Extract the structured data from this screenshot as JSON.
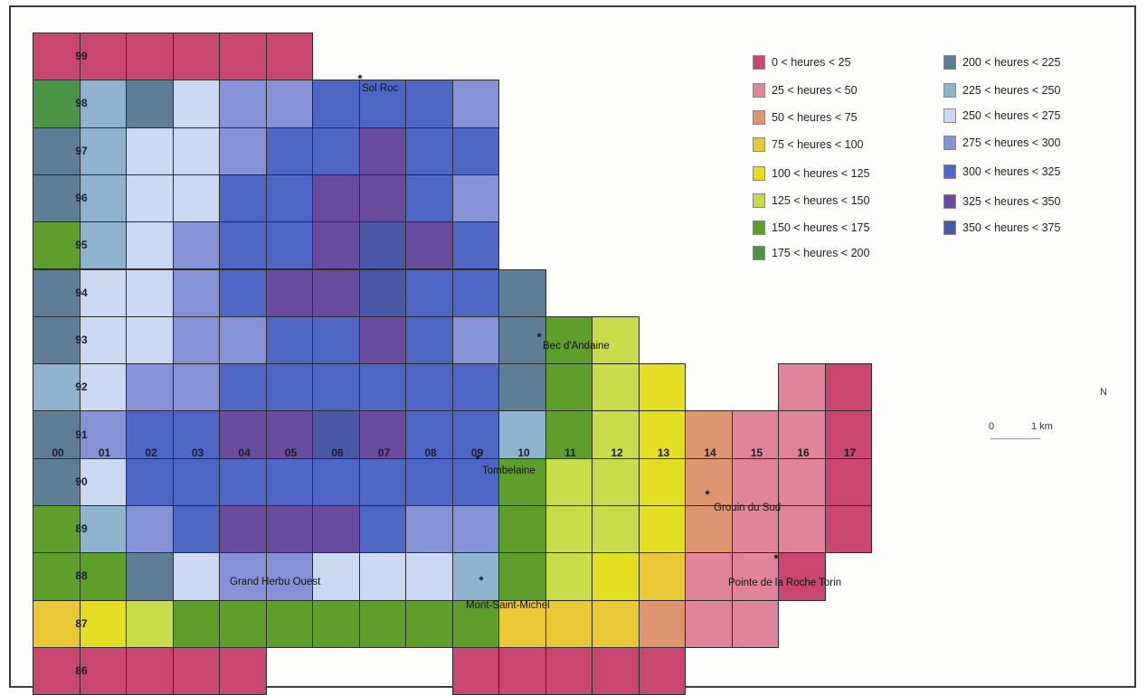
{
  "legend": [
    {
      "label": "0 < heures < 25",
      "color": "#c8466f"
    },
    {
      "label": "25 < heures < 50",
      "color": "#e0849a"
    },
    {
      "label": "50 < heures < 75",
      "color": "#de9670"
    },
    {
      "label": "75 < heures < 100",
      "color": "#e9c838"
    },
    {
      "label": "100 < heures < 125",
      "color": "#e3de22"
    },
    {
      "label": "125 < heures < 150",
      "color": "#c9dc4c"
    },
    {
      "label": "150 < heures < 175",
      "color": "#5e9f2c"
    },
    {
      "label": "175 < heures < 200",
      "color": "#4a9445"
    },
    {
      "label": "200 < heures < 225",
      "color": "#5f7e96"
    },
    {
      "label": "225 < heures < 250",
      "color": "#8fb3cf"
    },
    {
      "label": "250 < heures < 275",
      "color": "#cbdaf2"
    },
    {
      "label": "275 < heures < 300",
      "color": "#8593d6"
    },
    {
      "label": "300 < heures < 325",
      "color": "#4f66c4"
    },
    {
      "label": "325 < heures < 350",
      "color": "#6a4c9e"
    },
    {
      "label": "350 < heures < 375",
      "color": "#4a58a8"
    }
  ],
  "columns": [
    "00",
    "01",
    "02",
    "03",
    "04",
    "05",
    "06",
    "07",
    "08",
    "09",
    "10",
    "11",
    "12",
    "13",
    "14",
    "15",
    "16",
    "17"
  ],
  "rows": [
    {
      "label": "99",
      "start": 0,
      "classes": [
        0,
        0,
        0,
        0,
        0,
        0
      ]
    },
    {
      "label": "98",
      "start": 0,
      "classes": [
        7,
        9,
        8,
        10,
        11,
        11,
        12,
        12,
        12,
        11
      ]
    },
    {
      "label": "97",
      "start": 0,
      "classes": [
        8,
        9,
        10,
        10,
        11,
        12,
        12,
        13,
        12,
        12
      ]
    },
    {
      "label": "96",
      "start": 0,
      "classes": [
        8,
        9,
        10,
        10,
        12,
        12,
        13,
        13,
        12,
        11
      ]
    },
    {
      "label": "95",
      "start": 0,
      "classes": [
        6,
        9,
        10,
        11,
        12,
        12,
        13,
        14,
        13,
        12
      ]
    },
    {
      "label": "94",
      "start": 0,
      "classes": [
        8,
        10,
        10,
        11,
        12,
        13,
        13,
        14,
        12,
        12,
        8
      ]
    },
    {
      "label": "93",
      "start": 0,
      "classes": [
        8,
        10,
        10,
        11,
        11,
        12,
        12,
        13,
        12,
        11,
        8,
        6,
        5
      ]
    },
    {
      "label": "92",
      "start": 0,
      "classes": [
        9,
        10,
        11,
        11,
        12,
        12,
        12,
        12,
        12,
        12,
        8,
        6,
        5,
        4,
        null,
        null,
        1,
        0
      ]
    },
    {
      "label": "91",
      "start": 0,
      "classes": [
        8,
        11,
        12,
        12,
        13,
        13,
        14,
        13,
        12,
        12,
        9,
        6,
        5,
        4,
        2,
        1,
        1,
        0
      ]
    },
    {
      "label": "90",
      "start": 0,
      "classes": [
        8,
        10,
        12,
        12,
        12,
        12,
        12,
        12,
        12,
        12,
        6,
        5,
        5,
        4,
        2,
        1,
        1,
        0
      ]
    },
    {
      "label": "89",
      "start": 0,
      "classes": [
        6,
        9,
        11,
        12,
        13,
        13,
        13,
        12,
        11,
        11,
        6,
        5,
        5,
        4,
        2,
        1,
        1,
        0
      ]
    },
    {
      "label": "88",
      "start": 0,
      "classes": [
        6,
        6,
        8,
        10,
        11,
        11,
        10,
        10,
        10,
        9,
        6,
        5,
        4,
        3,
        1,
        1,
        0
      ]
    },
    {
      "label": "87",
      "start": 0,
      "classes": [
        3,
        4,
        5,
        6,
        6,
        6,
        6,
        6,
        6,
        6,
        3,
        3,
        3,
        2,
        1,
        1
      ]
    },
    {
      "label": "86",
      "start": 0,
      "classes": [
        0,
        0,
        0,
        0,
        0,
        null,
        null,
        null,
        null,
        0,
        0,
        0,
        0,
        0
      ]
    }
  ],
  "places": [
    "Sol Roc",
    "Bec d'Andaine",
    "Tombelaine",
    "Grouin du Sud",
    "Grand Herbu Ouest",
    "Mont-Saint-Michel",
    "Pointe de la Roche Torin"
  ],
  "north_label": "N",
  "scale": {
    "zero": "0",
    "unit": "1 km"
  }
}
